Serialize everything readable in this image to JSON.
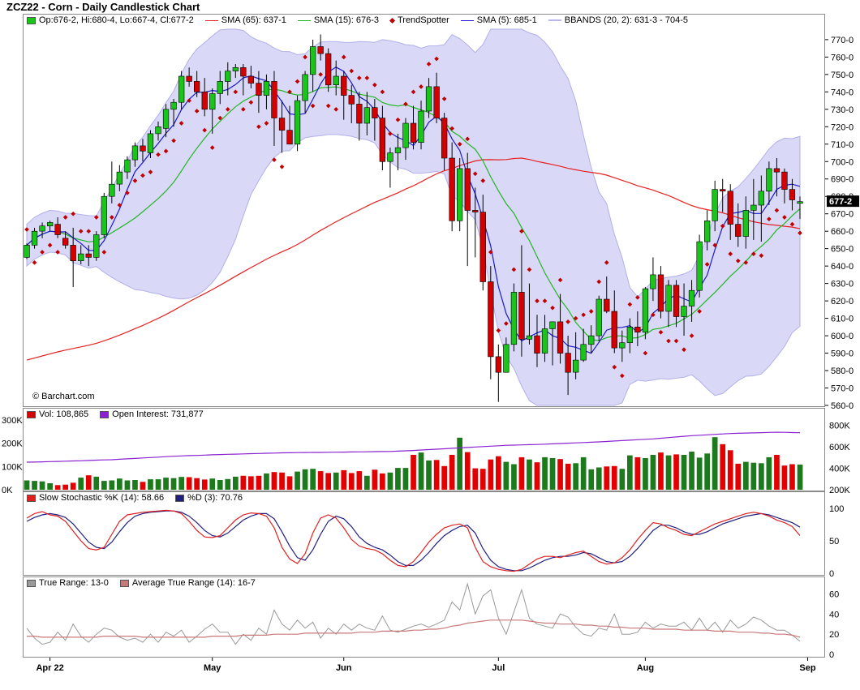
{
  "title": "ZCZ22 - Corn - Daily Candlestick Chart",
  "watermark": "© Barchart.com",
  "legends": {
    "price": {
      "ohlc": "Op:676-2, Hi:680-4, Lo:667-4, Cl:677-2",
      "sma65": "SMA (65): 637-1",
      "sma15": "SMA (15): 676-3",
      "trendspotter": "TrendSpotter",
      "sma5": "SMA (5): 685-1",
      "bbands": "BBANDS (20, 2): 631-3 - 704-5"
    },
    "volume": {
      "vol": "Vol: 108,865",
      "oi": "Open Interest: 731,877"
    },
    "stoch": {
      "k": "Slow Stochastic %K (14): 58.66",
      "d": "%D (3): 70.76"
    },
    "atr": {
      "tr": "True Range: 13-0",
      "atr": "Average True Range (14): 16-7"
    }
  },
  "last_price_label": "677-2",
  "colors": {
    "up": "#19c519",
    "down": "#d40000",
    "sma65": "#e62020",
    "sma15": "#22b522",
    "sma5": "#1919c8",
    "band_fill": "#cfcff5",
    "band_line": "#b0b0ea",
    "trend": "#c00000",
    "oi": "#8a22d0",
    "stochK": "#e02020",
    "stochD": "#202080",
    "tr": "#999999",
    "atr": "#c87878",
    "vol_up": "#1c7a1c",
    "vol_down": "#e20000"
  },
  "price_axis": {
    "ticks": [
      "770-0",
      "760-0",
      "750-0",
      "740-0",
      "730-0",
      "720-0",
      "710-0",
      "700-0",
      "690-0",
      "680-0",
      "670-0",
      "660-0",
      "650-0",
      "640-0",
      "630-0",
      "620-0",
      "610-0",
      "600-0",
      "590-0",
      "580-0",
      "570-0",
      "560-0"
    ]
  },
  "volume_axis": {
    "left_ticks": [
      "300K",
      "200K",
      "100K",
      "0K"
    ],
    "right_ticks": [
      "800K",
      "600K",
      "400K",
      "200K"
    ]
  },
  "stoch_axis": {
    "ticks": [
      "100",
      "50",
      "0"
    ]
  },
  "atr_axis": {
    "ticks": [
      "60",
      "40",
      "20",
      "0"
    ]
  },
  "x_axis": {
    "labels": [
      "Apr 22",
      "May",
      "Jun",
      "Jul",
      "Aug",
      "Sep"
    ],
    "label_bar_index": [
      3,
      24,
      41,
      61,
      80,
      101
    ]
  },
  "chart_data": {
    "type": "candlestick",
    "price_unit": "cents/bu",
    "ylim": [
      560,
      776
    ],
    "candles": [
      [
        645,
        653,
        644,
        652
      ],
      [
        652,
        662,
        650,
        660
      ],
      [
        660,
        665,
        656,
        663
      ],
      [
        663,
        666,
        660,
        665
      ],
      [
        664,
        668,
        656,
        658
      ],
      [
        656,
        660,
        650,
        652
      ],
      [
        652,
        662,
        628,
        643
      ],
      [
        643,
        652,
        641,
        647
      ],
      [
        647,
        652,
        640,
        645
      ],
      [
        645,
        660,
        643,
        658
      ],
      [
        658,
        682,
        656,
        680
      ],
      [
        680,
        700,
        676,
        687
      ],
      [
        687,
        698,
        683,
        694
      ],
      [
        694,
        703,
        690,
        701
      ],
      [
        701,
        711,
        697,
        709
      ],
      [
        709,
        713,
        700,
        706
      ],
      [
        705,
        718,
        702,
        716
      ],
      [
        716,
        723,
        712,
        720
      ],
      [
        719,
        733,
        714,
        730
      ],
      [
        730,
        736,
        720,
        734
      ],
      [
        734,
        752,
        730,
        749
      ],
      [
        749,
        754,
        743,
        746
      ],
      [
        746,
        752,
        737,
        740
      ],
      [
        740,
        748,
        726,
        730
      ],
      [
        730,
        742,
        716,
        739
      ],
      [
        739,
        752,
        733,
        746
      ],
      [
        746,
        757,
        738,
        752
      ],
      [
        752,
        756,
        748,
        754
      ],
      [
        754,
        756,
        738,
        749
      ],
      [
        749,
        755,
        742,
        745
      ],
      [
        745,
        752,
        728,
        738
      ],
      [
        738,
        750,
        730,
        746
      ],
      [
        746,
        752,
        709,
        725
      ],
      [
        725,
        735,
        705,
        718
      ],
      [
        718,
        732,
        710,
        710
      ],
      [
        710,
        738,
        706,
        735
      ],
      [
        735,
        752,
        728,
        750
      ],
      [
        750,
        770,
        740,
        766
      ],
      [
        766,
        773,
        758,
        762
      ],
      [
        762,
        765,
        740,
        744
      ],
      [
        744,
        758,
        738,
        749
      ],
      [
        749,
        752,
        724,
        738
      ],
      [
        738,
        744,
        722,
        733
      ],
      [
        733,
        740,
        712,
        722
      ],
      [
        722,
        740,
        715,
        731
      ],
      [
        731,
        736,
        712,
        725
      ],
      [
        725,
        732,
        695,
        700
      ],
      [
        700,
        708,
        685,
        705
      ],
      [
        705,
        716,
        695,
        708
      ],
      [
        708,
        725,
        701,
        722
      ],
      [
        722,
        732,
        707,
        711
      ],
      [
        711,
        735,
        707,
        729
      ],
      [
        729,
        748,
        725,
        743
      ],
      [
        743,
        751,
        722,
        725
      ],
      [
        725,
        728,
        695,
        702
      ],
      [
        702,
        711,
        660,
        666
      ],
      [
        666,
        702,
        660,
        696
      ],
      [
        696,
        705,
        640,
        672
      ],
      [
        672,
        685,
        645,
        671
      ],
      [
        671,
        681,
        626,
        631
      ],
      [
        631,
        640,
        575,
        588
      ],
      [
        588,
        595,
        562,
        579
      ],
      [
        579,
        599,
        580,
        595
      ],
      [
        595,
        630,
        591,
        625
      ],
      [
        625,
        652,
        588,
        598
      ],
      [
        598,
        630,
        595,
        600
      ],
      [
        600,
        612,
        582,
        590
      ],
      [
        590,
        612,
        585,
        604
      ],
      [
        604,
        608,
        583,
        608
      ],
      [
        608,
        624,
        584,
        590
      ],
      [
        590,
        600,
        566,
        579
      ],
      [
        579,
        602,
        575,
        586
      ],
      [
        586,
        604,
        585,
        595
      ],
      [
        595,
        606,
        590,
        600
      ],
      [
        600,
        623,
        597,
        621
      ],
      [
        621,
        634,
        613,
        614
      ],
      [
        614,
        626,
        590,
        593
      ],
      [
        593,
        603,
        585,
        596
      ],
      [
        596,
        610,
        590,
        605
      ],
      [
        605,
        614,
        594,
        602
      ],
      [
        602,
        628,
        598,
        627
      ],
      [
        627,
        645,
        620,
        635
      ],
      [
        635,
        640,
        610,
        614
      ],
      [
        614,
        632,
        605,
        629
      ],
      [
        629,
        632,
        605,
        611
      ],
      [
        611,
        630,
        600,
        617
      ],
      [
        617,
        632,
        608,
        626
      ],
      [
        626,
        658,
        622,
        654
      ],
      [
        654,
        672,
        649,
        666
      ],
      [
        666,
        689,
        660,
        684
      ],
      [
        684,
        690,
        671,
        683
      ],
      [
        683,
        687,
        655,
        664
      ],
      [
        664,
        676,
        651,
        657
      ],
      [
        657,
        680,
        650,
        672
      ],
      [
        672,
        690,
        655,
        675
      ],
      [
        675,
        692,
        654,
        683
      ],
      [
        683,
        700,
        675,
        696
      ],
      [
        696,
        702,
        680,
        694
      ],
      [
        694,
        696,
        676,
        684
      ],
      [
        684,
        690,
        672,
        678
      ],
      [
        676,
        680,
        667,
        677
      ]
    ],
    "volume": [
      40,
      38,
      36,
      28,
      20,
      22,
      30,
      52,
      62,
      56,
      38,
      40,
      48,
      40,
      42,
      34,
      45,
      45,
      52,
      50,
      55,
      54,
      50,
      44,
      48,
      42,
      46,
      56,
      60,
      58,
      60,
      70,
      76,
      74,
      58,
      78,
      88,
      90,
      80,
      72,
      74,
      84,
      72,
      80,
      60,
      86,
      70,
      74,
      94,
      94,
      150,
      160,
      126,
      128,
      102,
      150,
      224,
      162,
      92,
      90,
      130,
      144,
      120,
      110,
      140,
      130,
      118,
      140,
      136,
      132,
      112,
      114,
      140,
      88,
      96,
      100,
      102,
      90,
      148,
      140,
      136,
      150,
      160,
      148,
      152,
      150,
      164,
      138,
      156,
      226,
      196,
      170,
      112,
      120,
      116,
      114,
      140,
      150,
      104,
      110,
      108
    ],
    "open_interest": [
      457,
      458,
      460,
      462,
      464,
      466,
      468,
      470,
      473,
      476,
      478,
      480,
      484,
      488,
      492,
      496,
      500,
      504,
      508,
      512,
      515,
      518,
      520,
      523,
      526,
      528,
      530,
      532,
      534,
      536,
      538,
      540,
      542,
      544,
      545,
      546,
      547,
      548,
      548,
      549,
      550,
      551,
      552,
      553,
      554,
      555,
      556,
      557,
      560,
      563,
      566,
      570,
      574,
      578,
      582,
      586,
      590,
      594,
      598,
      602,
      606,
      610,
      614,
      616,
      618,
      620,
      622,
      625,
      628,
      631,
      634,
      637,
      640,
      643,
      646,
      650,
      654,
      658,
      662,
      666,
      670,
      674,
      680,
      686,
      692,
      698,
      704,
      708,
      712,
      716,
      720,
      724,
      726,
      728,
      730,
      732,
      734,
      736,
      735,
      733,
      731
    ],
    "stoch_k": [
      85,
      92,
      95,
      90,
      88,
      80,
      65,
      50,
      38,
      36,
      40,
      60,
      80,
      90,
      92,
      94,
      95,
      96,
      97,
      96,
      92,
      80,
      66,
      56,
      55,
      58,
      70,
      82,
      90,
      93,
      92,
      88,
      70,
      40,
      22,
      15,
      30,
      62,
      85,
      90,
      85,
      70,
      52,
      42,
      38,
      36,
      30,
      20,
      12,
      10,
      18,
      32,
      48,
      60,
      70,
      74,
      76,
      70,
      40,
      18,
      10,
      6,
      4,
      3,
      6,
      14,
      22,
      26,
      26,
      24,
      28,
      32,
      34,
      26,
      18,
      14,
      16,
      24,
      36,
      52,
      66,
      78,
      76,
      70,
      66,
      60,
      58,
      64,
      70,
      76,
      80,
      84,
      88,
      92,
      94,
      92,
      88,
      82,
      78,
      72,
      58
    ],
    "stoch_d": [
      80,
      86,
      90,
      92,
      90,
      86,
      76,
      62,
      48,
      40,
      38,
      48,
      64,
      78,
      88,
      92,
      94,
      95,
      96,
      96,
      94,
      88,
      78,
      66,
      58,
      56,
      62,
      72,
      82,
      88,
      92,
      92,
      84,
      64,
      42,
      24,
      20,
      36,
      60,
      80,
      88,
      84,
      72,
      56,
      46,
      40,
      36,
      28,
      18,
      12,
      12,
      20,
      32,
      46,
      58,
      66,
      72,
      74,
      62,
      38,
      20,
      10,
      6,
      4,
      4,
      8,
      14,
      20,
      24,
      26,
      26,
      28,
      32,
      30,
      24,
      18,
      16,
      18,
      26,
      38,
      52,
      66,
      74,
      74,
      70,
      64,
      60,
      60,
      64,
      70,
      76,
      80,
      84,
      88,
      90,
      92,
      90,
      86,
      82,
      78,
      71
    ],
    "true_range": [
      26,
      16,
      10,
      12,
      22,
      14,
      30,
      18,
      12,
      20,
      26,
      24,
      17,
      14,
      16,
      12,
      20,
      12,
      22,
      18,
      24,
      12,
      18,
      25,
      30,
      22,
      22,
      10,
      20,
      14,
      26,
      20,
      44,
      30,
      24,
      34,
      26,
      32,
      16,
      26,
      20,
      30,
      24,
      30,
      26,
      24,
      38,
      24,
      22,
      25,
      28,
      30,
      27,
      30,
      34,
      52,
      44,
      70,
      40,
      58,
      64,
      36,
      20,
      42,
      64,
      36,
      30,
      28,
      26,
      40,
      37,
      27,
      20,
      18,
      26,
      24,
      40,
      20,
      20,
      22,
      32,
      26,
      30,
      28,
      28,
      32,
      24,
      36,
      24,
      32,
      22,
      34,
      26,
      30,
      37,
      34,
      28,
      24,
      24,
      19,
      13
    ],
    "atr": [
      18,
      18,
      17,
      17,
      17,
      17,
      17,
      17,
      17,
      17,
      18,
      18,
      18,
      18,
      18,
      17,
      17,
      17,
      17,
      17,
      17,
      17,
      17,
      17,
      18,
      18,
      18,
      18,
      19,
      19,
      19,
      19,
      20,
      20,
      20,
      20,
      21,
      21,
      21,
      21,
      21,
      21,
      21,
      22,
      22,
      22,
      23,
      23,
      23,
      23,
      24,
      24,
      25,
      25,
      26,
      28,
      29,
      31,
      32,
      33,
      34,
      34,
      34,
      34,
      34,
      33,
      32,
      31,
      31,
      30,
      30,
      30,
      29,
      29,
      28,
      28,
      27,
      27,
      26,
      26,
      26,
      25,
      25,
      25,
      25,
      24,
      24,
      24,
      24,
      23,
      23,
      23,
      22,
      22,
      22,
      21,
      21,
      20,
      20,
      19,
      17
    ]
  }
}
